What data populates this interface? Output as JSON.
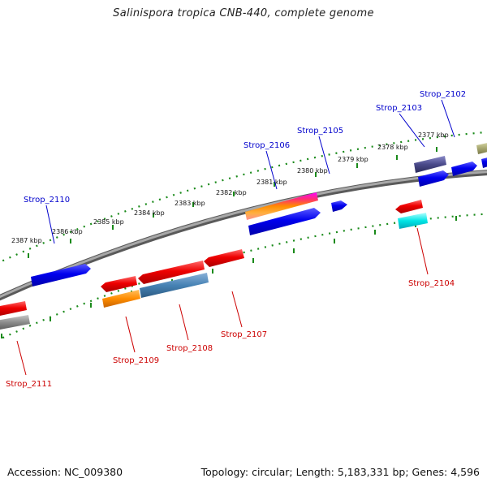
{
  "title": "Salinispora tropica CNB-440, complete genome",
  "footer": {
    "accession": "Accession: NC_009380",
    "summary": "Topology: circular; Length: 5,183,331 bp; Genes: 4,596"
  },
  "colors": {
    "backbone": "#8a8a8a",
    "tick": "#1a8a1a",
    "label_forward": "#0000cc",
    "label_reverse": "#cc0000"
  },
  "ticks": [
    {
      "label": "2387 kbp"
    },
    {
      "label": "2386 kbp"
    },
    {
      "label": "2385 kbp"
    },
    {
      "label": "2384 kbp"
    },
    {
      "label": "2383 kbp"
    },
    {
      "label": "2382 kbp"
    },
    {
      "label": "2381 kbp"
    },
    {
      "label": "2380 kbp"
    },
    {
      "label": "2379 kbp"
    },
    {
      "label": "2378 kbp"
    },
    {
      "label": "2377 kbp"
    }
  ],
  "gene_labels_top": [
    {
      "name": "Strop_2110"
    },
    {
      "name": "Strop_2106"
    },
    {
      "name": "Strop_2105"
    },
    {
      "name": "Strop_2103"
    },
    {
      "name": "Strop_2102"
    }
  ],
  "gene_labels_bottom": [
    {
      "name": "Strop_2111"
    },
    {
      "name": "Strop_2109"
    },
    {
      "name": "Strop_2108"
    },
    {
      "name": "Strop_2107"
    },
    {
      "name": "Strop_2104"
    }
  ]
}
